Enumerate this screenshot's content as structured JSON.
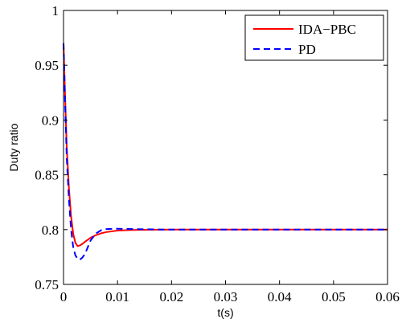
{
  "chart_data": {
    "type": "line",
    "title": "",
    "xlabel": "t(s)",
    "ylabel": "Duty ratio",
    "xlim": [
      0,
      0.06
    ],
    "ylim": [
      0.75,
      1.0
    ],
    "xticks": [
      0,
      0.01,
      0.02,
      0.03,
      0.04,
      0.05,
      0.06
    ],
    "xtick_labels": [
      "0",
      "0.01",
      "0.02",
      "0.03",
      "0.04",
      "0.05",
      "0.06"
    ],
    "yticks": [
      0.75,
      0.8,
      0.85,
      0.9,
      0.95,
      1.0
    ],
    "ytick_labels": [
      "0.75",
      "0.8",
      "0.85",
      "0.9",
      "0.95",
      "1"
    ],
    "grid": false,
    "legend_position": "top-right",
    "series": [
      {
        "name": "IDA−PBC",
        "color": "#ff0000",
        "style": "solid",
        "x": [
          0,
          0.0003,
          0.0006,
          0.001,
          0.0014,
          0.0018,
          0.0022,
          0.0026,
          0.003,
          0.0035,
          0.004,
          0.005,
          0.006,
          0.007,
          0.008,
          0.01,
          0.012,
          0.015,
          0.02,
          0.03,
          0.04,
          0.05,
          0.06
        ],
        "y": [
          0.97,
          0.92,
          0.875,
          0.838,
          0.812,
          0.796,
          0.788,
          0.785,
          0.7855,
          0.787,
          0.789,
          0.7925,
          0.795,
          0.7967,
          0.7978,
          0.7991,
          0.7996,
          0.7999,
          0.8,
          0.8,
          0.8,
          0.8,
          0.8
        ]
      },
      {
        "name": "PD",
        "color": "#0000ff",
        "style": "dashed",
        "x": [
          0,
          0.0003,
          0.0006,
          0.001,
          0.0014,
          0.0018,
          0.0022,
          0.0026,
          0.003,
          0.0035,
          0.004,
          0.0045,
          0.005,
          0.006,
          0.007,
          0.008,
          0.01,
          0.012,
          0.015,
          0.02,
          0.03,
          0.04,
          0.05,
          0.06
        ],
        "y": [
          0.97,
          0.915,
          0.865,
          0.828,
          0.8,
          0.784,
          0.7765,
          0.7735,
          0.7725,
          0.7745,
          0.778,
          0.784,
          0.79,
          0.7965,
          0.7995,
          0.8005,
          0.8008,
          0.8006,
          0.8003,
          0.8,
          0.8,
          0.8,
          0.8,
          0.8
        ]
      }
    ]
  }
}
